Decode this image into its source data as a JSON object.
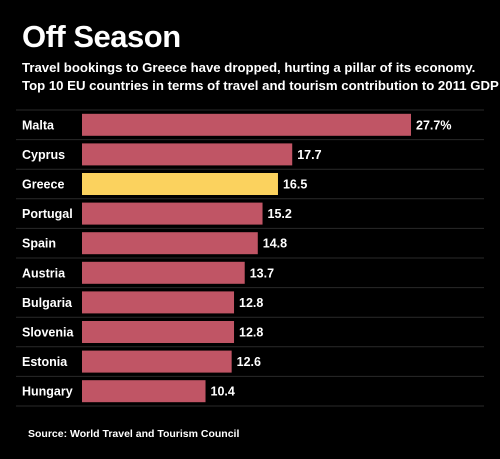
{
  "title": "Off Season",
  "subtitle_line1": "Travel bookings to Greece have dropped, hurting a pillar of its economy.",
  "subtitle_line2": "Top 10 EU countries in terms of travel and tourism contribution to 2011 GDP",
  "source": "Source: World Travel and Tourism Council",
  "colors": {
    "bar": "#c05565",
    "highlight": "#fbd25e",
    "background": "#000000",
    "text": "#ffffff",
    "grid": "#2a2a2a"
  },
  "chart_data": {
    "type": "bar",
    "orientation": "horizontal",
    "categories": [
      "Malta",
      "Cyprus",
      "Greece",
      "Portugal",
      "Spain",
      "Austria",
      "Bulgaria",
      "Slovenia",
      "Estonia",
      "Hungary"
    ],
    "values": [
      27.7,
      17.7,
      16.5,
      15.2,
      14.8,
      13.7,
      12.8,
      12.8,
      12.6,
      10.4
    ],
    "labels": [
      "27.7%",
      "17.7",
      "16.5",
      "15.2",
      "14.8",
      "13.7",
      "12.8",
      "12.8",
      "12.6",
      "10.4"
    ],
    "highlight": "Greece",
    "xlim": [
      0,
      27.7
    ],
    "grid": "horizontal separators between rows"
  }
}
